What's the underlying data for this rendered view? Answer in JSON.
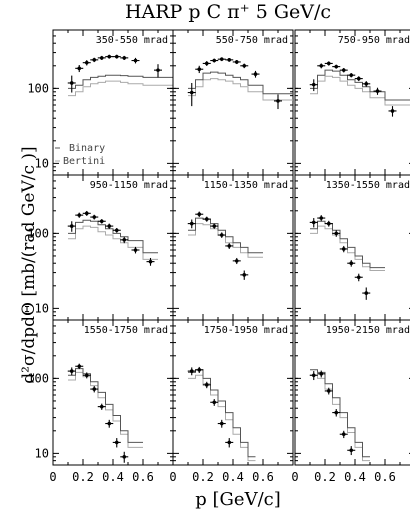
{
  "title": "HARP  p C π⁺ 5 GeV/c",
  "ylabel": "d²σ/dpdΘ [mb/(rad GeV/c )]",
  "xlabel": "p [GeV/c]",
  "legend": {
    "binary": "Binary",
    "bertini": "Bertini"
  },
  "chart_data": {
    "type": "scatter",
    "title": "HARP  p C π⁺ 5 GeV/c",
    "xlabel": "p [GeV/c]",
    "ylabel": "d²σ/dpdΘ [mb/(rad GeV/c )]",
    "xlim": [
      0,
      0.8
    ],
    "ylim": [
      7,
      600
    ],
    "yscale": "log",
    "x_ticks": [
      "0",
      "0.2",
      "0.4",
      "0.6"
    ],
    "y_ticks": [
      "10",
      "100"
    ],
    "grid": false,
    "legend_placement": "bottom-left of top-left panel",
    "series_names": [
      "Binary",
      "Bertini"
    ],
    "panels": [
      {
        "label": "350-550 mrad",
        "data": {
          "x": [
            0.125,
            0.175,
            0.225,
            0.275,
            0.325,
            0.375,
            0.425,
            0.475,
            0.55,
            0.7
          ],
          "y": [
            118,
            185,
            220,
            240,
            255,
            265,
            265,
            255,
            235,
            175
          ],
          "yerr": [
            30,
            20,
            18,
            16,
            16,
            16,
            16,
            16,
            20,
            35
          ]
        },
        "binary": {
          "edges": [
            0.1,
            0.15,
            0.2,
            0.25,
            0.3,
            0.35,
            0.4,
            0.45,
            0.5,
            0.6,
            0.8
          ],
          "values": [
            100,
            110,
            130,
            140,
            145,
            150,
            150,
            148,
            145,
            140
          ]
        },
        "bertini": {
          "edges": [
            0.1,
            0.15,
            0.2,
            0.25,
            0.3,
            0.35,
            0.4,
            0.45,
            0.5,
            0.6,
            0.8
          ],
          "values": [
            80,
            90,
            105,
            115,
            120,
            125,
            125,
            120,
            115,
            110
          ]
        }
      },
      {
        "label": "550-750 mrad",
        "data": {
          "x": [
            0.125,
            0.175,
            0.225,
            0.275,
            0.325,
            0.375,
            0.425,
            0.475,
            0.55,
            0.7
          ],
          "y": [
            88,
            180,
            215,
            235,
            245,
            240,
            225,
            200,
            155,
            68
          ],
          "yerr": [
            30,
            20,
            16,
            14,
            14,
            14,
            14,
            14,
            16,
            15
          ]
        },
        "binary": {
          "edges": [
            0.1,
            0.15,
            0.2,
            0.25,
            0.3,
            0.35,
            0.4,
            0.45,
            0.5,
            0.6,
            0.8
          ],
          "values": [
            100,
            130,
            160,
            165,
            160,
            150,
            140,
            130,
            110,
            85
          ]
        },
        "bertini": {
          "edges": [
            0.1,
            0.15,
            0.2,
            0.25,
            0.3,
            0.35,
            0.4,
            0.45,
            0.5,
            0.6,
            0.8
          ],
          "values": [
            80,
            105,
            130,
            135,
            130,
            125,
            115,
            105,
            90,
            70
          ]
        }
      },
      {
        "label": "750-950 mrad",
        "data": {
          "x": [
            0.125,
            0.175,
            0.225,
            0.275,
            0.325,
            0.375,
            0.425,
            0.475,
            0.55,
            0.65
          ],
          "y": [
            112,
            200,
            215,
            195,
            175,
            150,
            135,
            115,
            92,
            50
          ],
          "yerr": [
            20,
            15,
            14,
            12,
            12,
            10,
            10,
            10,
            10,
            8
          ]
        },
        "binary": {
          "edges": [
            0.1,
            0.15,
            0.2,
            0.25,
            0.3,
            0.35,
            0.4,
            0.45,
            0.5,
            0.6,
            0.8
          ],
          "values": [
            100,
            150,
            175,
            170,
            150,
            130,
            120,
            105,
            90,
            70
          ]
        },
        "bertini": {
          "edges": [
            0.1,
            0.15,
            0.2,
            0.25,
            0.3,
            0.35,
            0.4,
            0.45,
            0.5,
            0.6,
            0.8
          ],
          "values": [
            85,
            125,
            145,
            140,
            125,
            110,
            100,
            90,
            75,
            60
          ]
        }
      },
      {
        "label": "950-1150 mrad",
        "data": {
          "x": [
            0.125,
            0.175,
            0.225,
            0.275,
            0.325,
            0.375,
            0.425,
            0.475,
            0.55,
            0.65
          ],
          "y": [
            125,
            175,
            185,
            165,
            145,
            125,
            110,
            82,
            60,
            42
          ],
          "yerr": [
            20,
            14,
            14,
            12,
            10,
            10,
            8,
            8,
            6,
            5
          ]
        },
        "binary": {
          "edges": [
            0.1,
            0.15,
            0.2,
            0.25,
            0.3,
            0.35,
            0.4,
            0.45,
            0.5,
            0.6,
            0.7
          ],
          "values": [
            100,
            140,
            150,
            145,
            130,
            115,
            100,
            90,
            80,
            55
          ]
        },
        "bertini": {
          "edges": [
            0.1,
            0.15,
            0.2,
            0.25,
            0.3,
            0.35,
            0.4,
            0.45,
            0.5,
            0.6,
            0.7
          ],
          "values": [
            85,
            115,
            125,
            120,
            105,
            95,
            85,
            75,
            65,
            45
          ]
        }
      },
      {
        "label": "1150-1350 mrad",
        "data": {
          "x": [
            0.125,
            0.175,
            0.225,
            0.275,
            0.325,
            0.375,
            0.425,
            0.475
          ],
          "y": [
            135,
            180,
            155,
            125,
            95,
            68,
            43,
            28
          ],
          "yerr": [
            18,
            15,
            12,
            10,
            8,
            6,
            4,
            4
          ]
        },
        "binary": {
          "edges": [
            0.1,
            0.15,
            0.2,
            0.25,
            0.3,
            0.35,
            0.4,
            0.45,
            0.5,
            0.6
          ],
          "values": [
            110,
            160,
            155,
            135,
            110,
            90,
            75,
            65,
            55
          ]
        },
        "bertini": {
          "edges": [
            0.1,
            0.15,
            0.2,
            0.25,
            0.3,
            0.35,
            0.4,
            0.45,
            0.5,
            0.6
          ],
          "values": [
            95,
            135,
            130,
            115,
            95,
            75,
            65,
            55,
            48
          ]
        }
      },
      {
        "label": "1350-1550 mrad",
        "data": {
          "x": [
            0.125,
            0.175,
            0.225,
            0.275,
            0.325,
            0.375,
            0.425,
            0.475
          ],
          "y": [
            140,
            160,
            135,
            100,
            62,
            40,
            26,
            16
          ],
          "yerr": [
            20,
            15,
            12,
            10,
            6,
            4,
            3,
            3
          ]
        },
        "binary": {
          "edges": [
            0.1,
            0.15,
            0.2,
            0.25,
            0.3,
            0.35,
            0.4,
            0.45,
            0.5,
            0.6
          ],
          "values": [
            115,
            145,
            135,
            110,
            85,
            65,
            50,
            40,
            35
          ]
        },
        "bertini": {
          "edges": [
            0.1,
            0.15,
            0.2,
            0.25,
            0.3,
            0.35,
            0.4,
            0.45,
            0.5,
            0.6
          ],
          "values": [
            100,
            125,
            115,
            95,
            75,
            55,
            45,
            36,
            32
          ]
        }
      },
      {
        "label": "1550-1750 mrad",
        "data": {
          "x": [
            0.125,
            0.175,
            0.225,
            0.275,
            0.325,
            0.375,
            0.425,
            0.475
          ],
          "y": [
            125,
            145,
            110,
            72,
            42,
            25,
            14,
            9
          ],
          "yerr": [
            15,
            12,
            10,
            7,
            4,
            3,
            2,
            1.5
          ]
        },
        "binary": {
          "edges": [
            0.1,
            0.15,
            0.2,
            0.25,
            0.3,
            0.35,
            0.4,
            0.45,
            0.5,
            0.6
          ],
          "values": [
            110,
            135,
            115,
            90,
            65,
            45,
            32,
            20,
            14
          ]
        },
        "bertini": {
          "edges": [
            0.1,
            0.15,
            0.2,
            0.25,
            0.3,
            0.35,
            0.4,
            0.45,
            0.5,
            0.6
          ],
          "values": [
            95,
            120,
            105,
            80,
            55,
            38,
            27,
            18,
            12
          ]
        }
      },
      {
        "label": "1750-1950 mrad",
        "data": {
          "x": [
            0.125,
            0.175,
            0.225,
            0.275,
            0.325,
            0.375
          ],
          "y": [
            125,
            130,
            82,
            48,
            25,
            14
          ],
          "yerr": [
            15,
            12,
            8,
            5,
            3,
            2
          ]
        },
        "binary": {
          "edges": [
            0.1,
            0.15,
            0.2,
            0.25,
            0.3,
            0.35,
            0.4,
            0.45,
            0.5,
            0.55
          ],
          "values": [
            120,
            130,
            100,
            70,
            50,
            35,
            22,
            14,
            9
          ]
        },
        "bertini": {
          "edges": [
            0.1,
            0.15,
            0.2,
            0.25,
            0.3,
            0.35,
            0.4,
            0.45,
            0.5,
            0.55
          ],
          "values": [
            100,
            110,
            85,
            60,
            42,
            28,
            18,
            12,
            8
          ]
        }
      },
      {
        "label": "1950-2150 mrad",
        "data": {
          "x": [
            0.125,
            0.175,
            0.225,
            0.275,
            0.325,
            0.375
          ],
          "y": [
            110,
            115,
            68,
            35,
            18,
            11
          ],
          "yerr": [
            15,
            12,
            7,
            4,
            2,
            1.5
          ]
        },
        "binary": {
          "edges": [
            0.1,
            0.15,
            0.2,
            0.25,
            0.3,
            0.35,
            0.4,
            0.45,
            0.5
          ],
          "values": [
            130,
            120,
            85,
            55,
            35,
            22,
            14,
            9
          ]
        },
        "bertini": {
          "edges": [
            0.1,
            0.15,
            0.2,
            0.25,
            0.3,
            0.35,
            0.4,
            0.45,
            0.5
          ],
          "values": [
            110,
            100,
            72,
            45,
            30,
            19,
            12,
            8
          ]
        }
      }
    ]
  }
}
